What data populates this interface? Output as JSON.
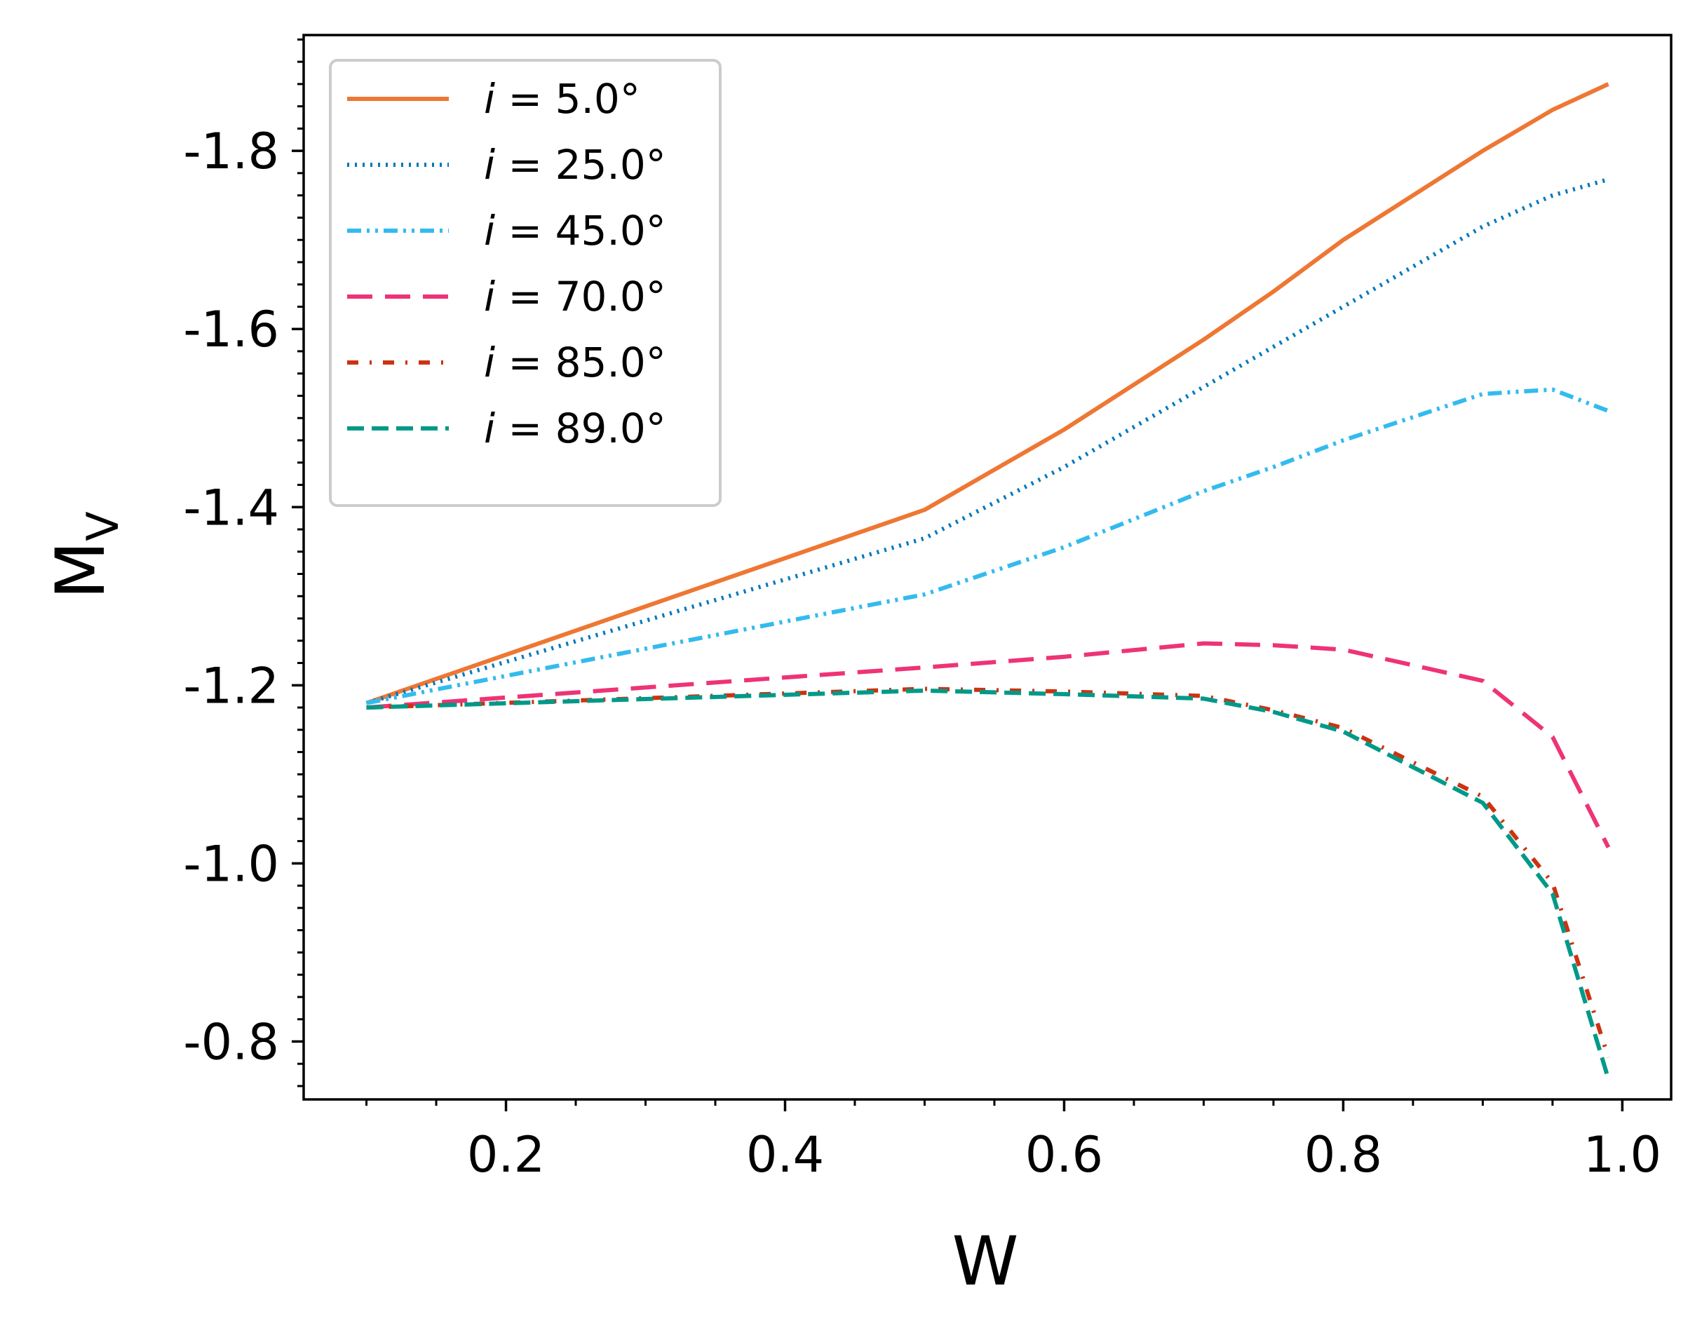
{
  "chart_data": {
    "type": "line",
    "title": "",
    "xlabel": "W",
    "ylabel": "M",
    "ylabel_subscript": "V",
    "xlim": [
      0.055,
      1.035
    ],
    "ylim": [
      -1.93,
      -0.735
    ],
    "y_inverted": true,
    "x_ticks": [
      0.2,
      0.4,
      0.6,
      0.8,
      1.0
    ],
    "x_tick_labels": [
      "0.2",
      "0.4",
      "0.6",
      "0.8",
      "1.0"
    ],
    "y_ticks": [
      -1.8,
      -1.6,
      -1.4,
      -1.2,
      -1.0,
      -0.8
    ],
    "y_tick_labels": [
      "-1.8",
      "-1.6",
      "-1.4",
      "-1.2",
      "-1.0",
      "-0.8"
    ],
    "legend_position": "top-left",
    "x": [
      0.1,
      0.5,
      0.6,
      0.7,
      0.75,
      0.8,
      0.9,
      0.95,
      0.99
    ],
    "series": [
      {
        "name": "i = 5.0°",
        "label_var": "i",
        "label_rest": " = 5.0°",
        "color": "#EE7733",
        "style": "solid",
        "values": [
          -1.18,
          -1.397,
          -1.487,
          -1.588,
          -1.642,
          -1.7,
          -1.8,
          -1.846,
          -1.875
        ]
      },
      {
        "name": "i = 25.0°",
        "label_var": "i",
        "label_rest": " = 25.0°",
        "color": "#0077BB",
        "style": "dotted",
        "values": [
          -1.18,
          -1.365,
          -1.445,
          -1.535,
          -1.58,
          -1.625,
          -1.715,
          -1.75,
          -1.768
        ]
      },
      {
        "name": "i = 45.0°",
        "label_var": "i",
        "label_rest": " = 45.0°",
        "color": "#33BBEE",
        "style": "dashdotdot",
        "values": [
          -1.18,
          -1.302,
          -1.355,
          -1.418,
          -1.445,
          -1.475,
          -1.527,
          -1.532,
          -1.508
        ]
      },
      {
        "name": "i = 70.0°",
        "label_var": "i",
        "label_rest": " = 70.0°",
        "color": "#EE3377",
        "style": "longdash",
        "values": [
          -1.175,
          -1.22,
          -1.232,
          -1.247,
          -1.245,
          -1.24,
          -1.205,
          -1.142,
          -1.018
        ]
      },
      {
        "name": "i = 85.0°",
        "label_var": "i",
        "label_rest": " = 85.0°",
        "color": "#CC3311",
        "style": "dashdot",
        "values": [
          -1.175,
          -1.196,
          -1.193,
          -1.188,
          -1.172,
          -1.152,
          -1.075,
          -0.978,
          -0.782
        ]
      },
      {
        "name": "i = 89.0°",
        "label_var": "i",
        "label_rest": " = 89.0°",
        "color": "#009988",
        "style": "dashed",
        "values": [
          -1.175,
          -1.194,
          -1.19,
          -1.185,
          -1.17,
          -1.148,
          -1.068,
          -0.966,
          -0.758
        ]
      }
    ]
  }
}
